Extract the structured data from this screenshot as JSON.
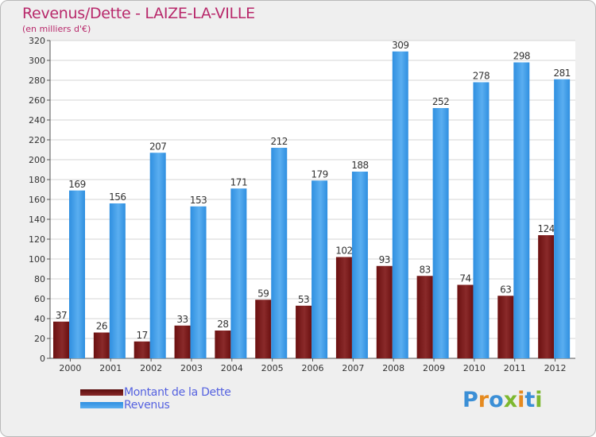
{
  "chart_data": {
    "type": "bar",
    "title": "Revenus/Dette - LAIZE-LA-VILLE",
    "subtitle": "(en milliers d'€)",
    "categories": [
      "2000",
      "2001",
      "2002",
      "2003",
      "2004",
      "2005",
      "2006",
      "2007",
      "2008",
      "2009",
      "2010",
      "2011",
      "2012"
    ],
    "series": [
      {
        "name": "Montant de la Dette",
        "color": "#7d1a1a",
        "values": [
          37,
          26,
          17,
          33,
          28,
          59,
          53,
          102,
          93,
          83,
          74,
          63,
          124
        ]
      },
      {
        "name": "Revenus",
        "color": "#3f9de6",
        "values": [
          169,
          156,
          207,
          153,
          171,
          212,
          179,
          188,
          309,
          252,
          278,
          298,
          281
        ]
      }
    ],
    "ylim": [
      0,
      320
    ],
    "ytick_step": 20,
    "yticks": [
      "0",
      "20",
      "40",
      "60",
      "80",
      "100",
      "120",
      "140",
      "160",
      "180",
      "200",
      "220",
      "240",
      "260",
      "280",
      "300",
      "320"
    ],
    "grid": true,
    "legend_position": "bottom-left"
  },
  "brand": {
    "letters": [
      "P",
      "r",
      "o",
      "x",
      "i",
      "t",
      "i"
    ],
    "colors": [
      "#3b8fd6",
      "#e58a1f",
      "#3b8fd6",
      "#7db82f",
      "#e58a1f",
      "#3b8fd6",
      "#7db82f"
    ]
  }
}
